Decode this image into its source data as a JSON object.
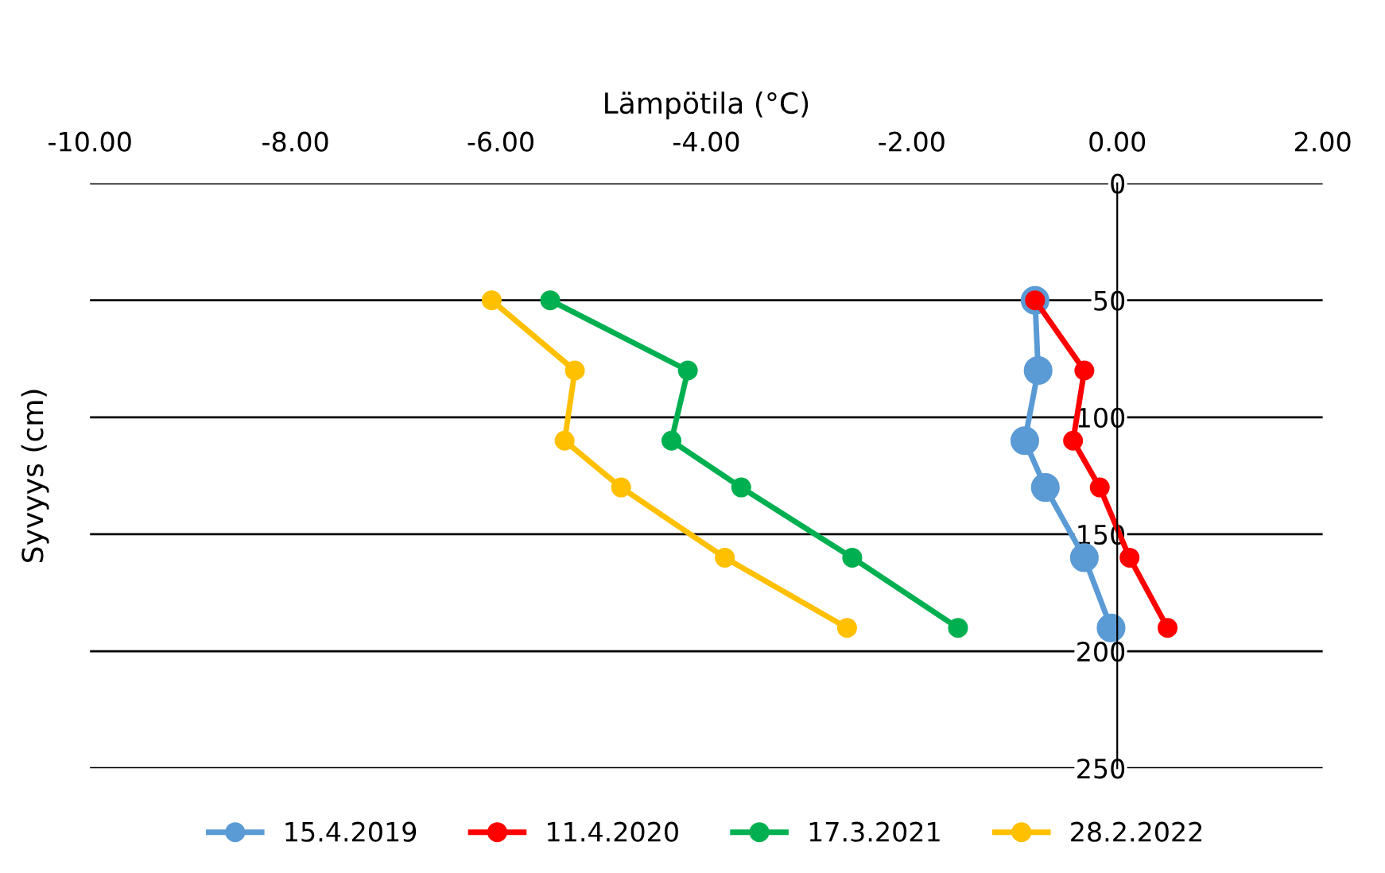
{
  "chart_data": {
    "type": "line",
    "xlabel": "Lämpötila (°C)",
    "ylabel": "Syvyys (cm)",
    "xlim": [
      -10,
      2
    ],
    "ylim": [
      250,
      0
    ],
    "xticks": [
      {
        "value": -10,
        "label": "-10.00"
      },
      {
        "value": -8,
        "label": "-8.00"
      },
      {
        "value": -6,
        "label": "-6.00"
      },
      {
        "value": -4,
        "label": "-4.00"
      },
      {
        "value": -2,
        "label": "-2.00"
      },
      {
        "value": 0,
        "label": "0.00"
      },
      {
        "value": 2,
        "label": "2.00"
      }
    ],
    "yticks": [
      0,
      50,
      100,
      150,
      200,
      250
    ],
    "grid": "y",
    "legend": "bottom",
    "marker": "circle",
    "line_style": "solid",
    "series": [
      {
        "name": "15.4.2019",
        "color": "#5b9bd5",
        "x": [
          -0.8,
          -0.77,
          -0.9,
          -0.7,
          -0.32,
          -0.06
        ],
        "values": [
          50,
          80,
          110,
          130,
          160,
          190
        ]
      },
      {
        "name": "11.4.2020",
        "color": "#ff0000",
        "x": [
          -0.8,
          -0.32,
          -0.43,
          -0.17,
          0.12,
          0.49
        ],
        "values": [
          50,
          80,
          110,
          130,
          160,
          190
        ]
      },
      {
        "name": "17.3.2021",
        "color": "#00b050",
        "x": [
          -5.52,
          -4.18,
          -4.34,
          -3.66,
          -2.58,
          -1.55
        ],
        "values": [
          50,
          80,
          110,
          130,
          160,
          190
        ]
      },
      {
        "name": "28.2.2022",
        "color": "#ffc000",
        "x": [
          -6.09,
          -5.28,
          -5.38,
          -4.83,
          -3.82,
          -2.63
        ],
        "values": [
          50,
          80,
          110,
          130,
          160,
          190
        ]
      }
    ]
  }
}
